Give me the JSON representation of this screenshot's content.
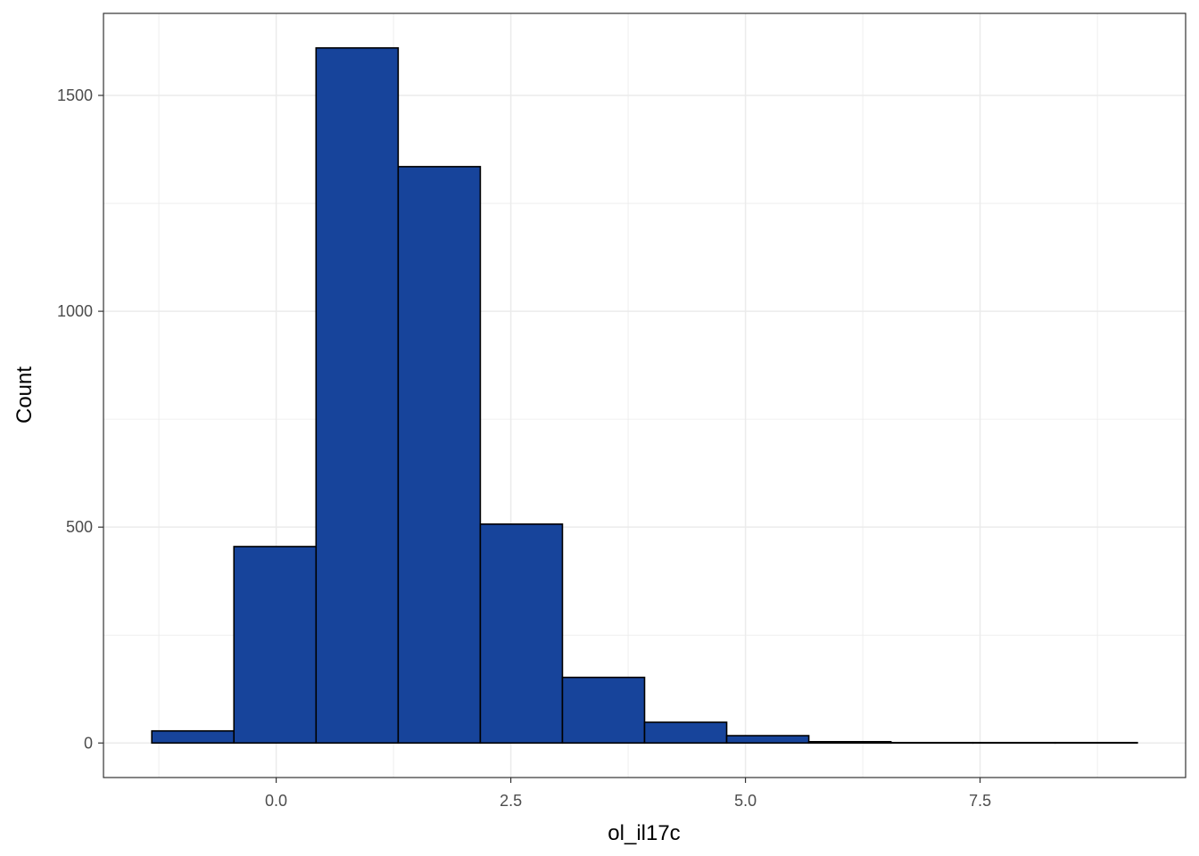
{
  "chart_data": {
    "type": "bar",
    "subtype": "histogram",
    "title": "",
    "xlabel": "ol_il17c",
    "ylabel": "Count",
    "bins": [
      {
        "x0": -1.325,
        "x1": -0.45,
        "count": 28
      },
      {
        "x0": -0.45,
        "x1": 0.425,
        "count": 455
      },
      {
        "x0": 0.425,
        "x1": 1.3,
        "count": 1610
      },
      {
        "x0": 1.3,
        "x1": 2.175,
        "count": 1335
      },
      {
        "x0": 2.175,
        "x1": 3.05,
        "count": 507
      },
      {
        "x0": 3.05,
        "x1": 3.925,
        "count": 152
      },
      {
        "x0": 3.925,
        "x1": 4.8,
        "count": 48
      },
      {
        "x0": 4.8,
        "x1": 5.675,
        "count": 17
      },
      {
        "x0": 5.675,
        "x1": 6.55,
        "count": 3
      },
      {
        "x0": 6.55,
        "x1": 7.425,
        "count": 1
      },
      {
        "x0": 7.425,
        "x1": 8.3,
        "count": 1
      },
      {
        "x0": 8.3,
        "x1": 9.175,
        "count": 1
      }
    ],
    "xlim": [
      -1.84,
      9.69
    ],
    "ylim": [
      -80,
      1690
    ],
    "x_ticks": [
      0.0,
      2.5,
      5.0,
      7.5
    ],
    "x_tick_labels": [
      "0.0",
      "2.5",
      "5.0",
      "7.5"
    ],
    "x_minor_ticks": [
      -1.25,
      1.25,
      3.75,
      6.25,
      8.75
    ],
    "y_ticks": [
      0,
      500,
      1000,
      1500
    ],
    "y_tick_labels": [
      "0",
      "500",
      "1000",
      "1500"
    ],
    "y_minor_ticks": [
      250,
      750,
      1250
    ],
    "grid": true,
    "legend": "none",
    "colors": {
      "bar_fill": "#17449b",
      "bar_stroke": "#000000",
      "grid": "#ebebeb",
      "panel_border": "#333333",
      "tick_label": "#4d4d4d",
      "axis_title": "#000000"
    }
  }
}
